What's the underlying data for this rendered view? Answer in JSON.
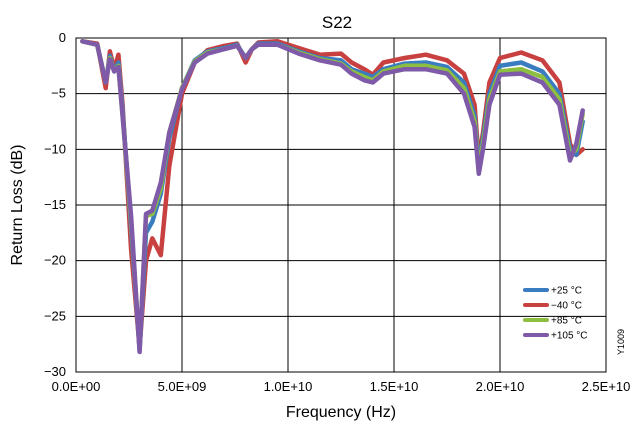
{
  "chart_data": {
    "type": "line",
    "title": "S22",
    "xlabel": "Frequency (Hz)",
    "ylabel": "Return Loss (dB)",
    "xlim": [
      0,
      25000000000
    ],
    "ylim": [
      -30,
      0
    ],
    "x_ticks": [
      0,
      5000000000,
      10000000000,
      15000000000,
      20000000000,
      25000000000
    ],
    "x_tick_labels": [
      "0.0E+00",
      "5.0E+09",
      "1.0E+10",
      "1.5E+10",
      "2.0E+10",
      "2.5E+10"
    ],
    "y_ticks": [
      0,
      -5,
      -10,
      -15,
      -20,
      -25,
      -30
    ],
    "y_tick_labels": [
      "0",
      "−5",
      "−10",
      "−15",
      "−20",
      "−25",
      "−30"
    ],
    "grid": true,
    "legend_position": "bottom-right",
    "figure_code": "Y1009",
    "series": [
      {
        "name": "+25 °C",
        "color": "#3a7cc0",
        "x": [
          300000000.0,
          1000000000.0,
          1400000000.0,
          1600000000.0,
          1800000000.0,
          2000000000.0,
          2200000000.0,
          2600000000.0,
          3000000000.0,
          3300000000.0,
          3600000000.0,
          4000000000.0,
          4400000000.0,
          5000000000.0,
          5600000000.0,
          6200000000.0,
          7000000000.0,
          7600000000.0,
          8000000000.0,
          8300000000.0,
          8600000000.0,
          9500000000.0,
          10500000000.0,
          11500000000.0,
          12500000000.0,
          13000000000.0,
          13600000000.0,
          14000000000.0,
          14500000000.0,
          15500000000.0,
          16500000000.0,
          17500000000.0,
          18300000000.0,
          18800000000.0,
          19000000000.0,
          19200000000.0,
          19500000000.0,
          20000000000.0,
          21000000000.0,
          22000000000.0,
          22800000000.0,
          23300000000.0,
          23600000000.0,
          23900000000.0
        ],
        "values": [
          -0.3,
          -0.6,
          -4.0,
          -1.6,
          -3.0,
          -2.2,
          -6.5,
          -17.0,
          -28.0,
          -17.5,
          -16.5,
          -14.0,
          -9.0,
          -4.5,
          -2.0,
          -1.2,
          -0.9,
          -0.6,
          -1.8,
          -1.0,
          -0.5,
          -0.5,
          -1.2,
          -1.8,
          -2.0,
          -2.8,
          -3.2,
          -3.5,
          -2.8,
          -2.3,
          -2.2,
          -2.6,
          -4.0,
          -7.0,
          -11.5,
          -9.0,
          -5.0,
          -2.5,
          -2.2,
          -3.0,
          -5.0,
          -10.0,
          -10.5,
          -7.5
        ]
      },
      {
        "name": "−40 °C",
        "color": "#c84040",
        "x": [
          300000000.0,
          1000000000.0,
          1400000000.0,
          1600000000.0,
          1800000000.0,
          2000000000.0,
          2200000000.0,
          2600000000.0,
          3000000000.0,
          3300000000.0,
          3600000000.0,
          4000000000.0,
          4400000000.0,
          5000000000.0,
          5600000000.0,
          6200000000.0,
          7000000000.0,
          7600000000.0,
          8000000000.0,
          8300000000.0,
          8600000000.0,
          9500000000.0,
          10500000000.0,
          11500000000.0,
          12500000000.0,
          13000000000.0,
          13600000000.0,
          14000000000.0,
          14500000000.0,
          15500000000.0,
          16500000000.0,
          17500000000.0,
          18300000000.0,
          18800000000.0,
          19000000000.0,
          19200000000.0,
          19500000000.0,
          20000000000.0,
          21000000000.0,
          22000000000.0,
          22800000000.0,
          23300000000.0,
          23600000000.0,
          23900000000.0
        ],
        "values": [
          -0.3,
          -0.5,
          -4.5,
          -1.2,
          -2.8,
          -1.5,
          -6.0,
          -19.0,
          -27.8,
          -20.0,
          -18.0,
          -19.5,
          -11.5,
          -5.0,
          -2.2,
          -1.1,
          -0.7,
          -0.5,
          -2.2,
          -1.0,
          -0.4,
          -0.3,
          -0.9,
          -1.5,
          -1.4,
          -2.2,
          -2.8,
          -3.3,
          -2.2,
          -1.8,
          -1.5,
          -2.0,
          -3.2,
          -6.0,
          -11.0,
          -8.5,
          -4.0,
          -1.8,
          -1.3,
          -2.0,
          -4.0,
          -9.5,
          -10.5,
          -10.0
        ]
      },
      {
        "name": "+85 °C",
        "color": "#8cbf3f",
        "x": [
          300000000.0,
          1000000000.0,
          1400000000.0,
          1600000000.0,
          1800000000.0,
          2000000000.0,
          2200000000.0,
          2600000000.0,
          3000000000.0,
          3300000000.0,
          3600000000.0,
          4000000000.0,
          4400000000.0,
          5000000000.0,
          5600000000.0,
          6200000000.0,
          7000000000.0,
          7600000000.0,
          8000000000.0,
          8300000000.0,
          8600000000.0,
          9500000000.0,
          10500000000.0,
          11500000000.0,
          12500000000.0,
          13000000000.0,
          13600000000.0,
          14000000000.0,
          14500000000.0,
          15500000000.0,
          16500000000.0,
          17500000000.0,
          18300000000.0,
          18800000000.0,
          19000000000.0,
          19200000000.0,
          19500000000.0,
          20000000000.0,
          21000000000.0,
          22000000000.0,
          22800000000.0,
          23300000000.0,
          23600000000.0,
          23900000000.0
        ],
        "values": [
          -0.3,
          -0.6,
          -4.0,
          -1.8,
          -3.0,
          -2.5,
          -7.0,
          -16.5,
          -28.0,
          -16.0,
          -15.8,
          -13.5,
          -8.5,
          -4.5,
          -2.1,
          -1.3,
          -1.0,
          -0.7,
          -1.8,
          -1.0,
          -0.6,
          -0.6,
          -1.3,
          -1.9,
          -2.3,
          -3.0,
          -3.5,
          -3.8,
          -3.0,
          -2.5,
          -2.5,
          -2.9,
          -4.5,
          -7.5,
          -11.8,
          -9.5,
          -5.5,
          -3.0,
          -2.8,
          -3.5,
          -5.5,
          -10.5,
          -10.0,
          -6.8
        ]
      },
      {
        "name": "+105 °C",
        "color": "#7e5aa8",
        "x": [
          300000000.0,
          1000000000.0,
          1400000000.0,
          1600000000.0,
          1800000000.0,
          2000000000.0,
          2200000000.0,
          2600000000.0,
          3000000000.0,
          3300000000.0,
          3600000000.0,
          4000000000.0,
          4400000000.0,
          5000000000.0,
          5600000000.0,
          6200000000.0,
          7000000000.0,
          7600000000.0,
          8000000000.0,
          8300000000.0,
          8600000000.0,
          9500000000.0,
          10500000000.0,
          11500000000.0,
          12500000000.0,
          13000000000.0,
          13600000000.0,
          14000000000.0,
          14500000000.0,
          15500000000.0,
          16500000000.0,
          17500000000.0,
          18300000000.0,
          18800000000.0,
          19000000000.0,
          19200000000.0,
          19500000000.0,
          20000000000.0,
          21000000000.0,
          22000000000.0,
          22800000000.0,
          23300000000.0,
          23600000000.0,
          23900000000.0
        ],
        "values": [
          -0.3,
          -0.6,
          -4.0,
          -1.9,
          -3.0,
          -2.6,
          -7.0,
          -16.0,
          -28.2,
          -15.8,
          -15.5,
          -13.0,
          -8.5,
          -4.6,
          -2.2,
          -1.4,
          -1.0,
          -0.7,
          -1.8,
          -1.0,
          -0.6,
          -0.6,
          -1.4,
          -2.0,
          -2.4,
          -3.2,
          -3.8,
          -4.0,
          -3.2,
          -2.8,
          -2.8,
          -3.2,
          -5.0,
          -8.0,
          -12.2,
          -10.0,
          -6.0,
          -3.3,
          -3.2,
          -4.0,
          -6.0,
          -11.0,
          -9.5,
          -6.5
        ]
      }
    ]
  }
}
